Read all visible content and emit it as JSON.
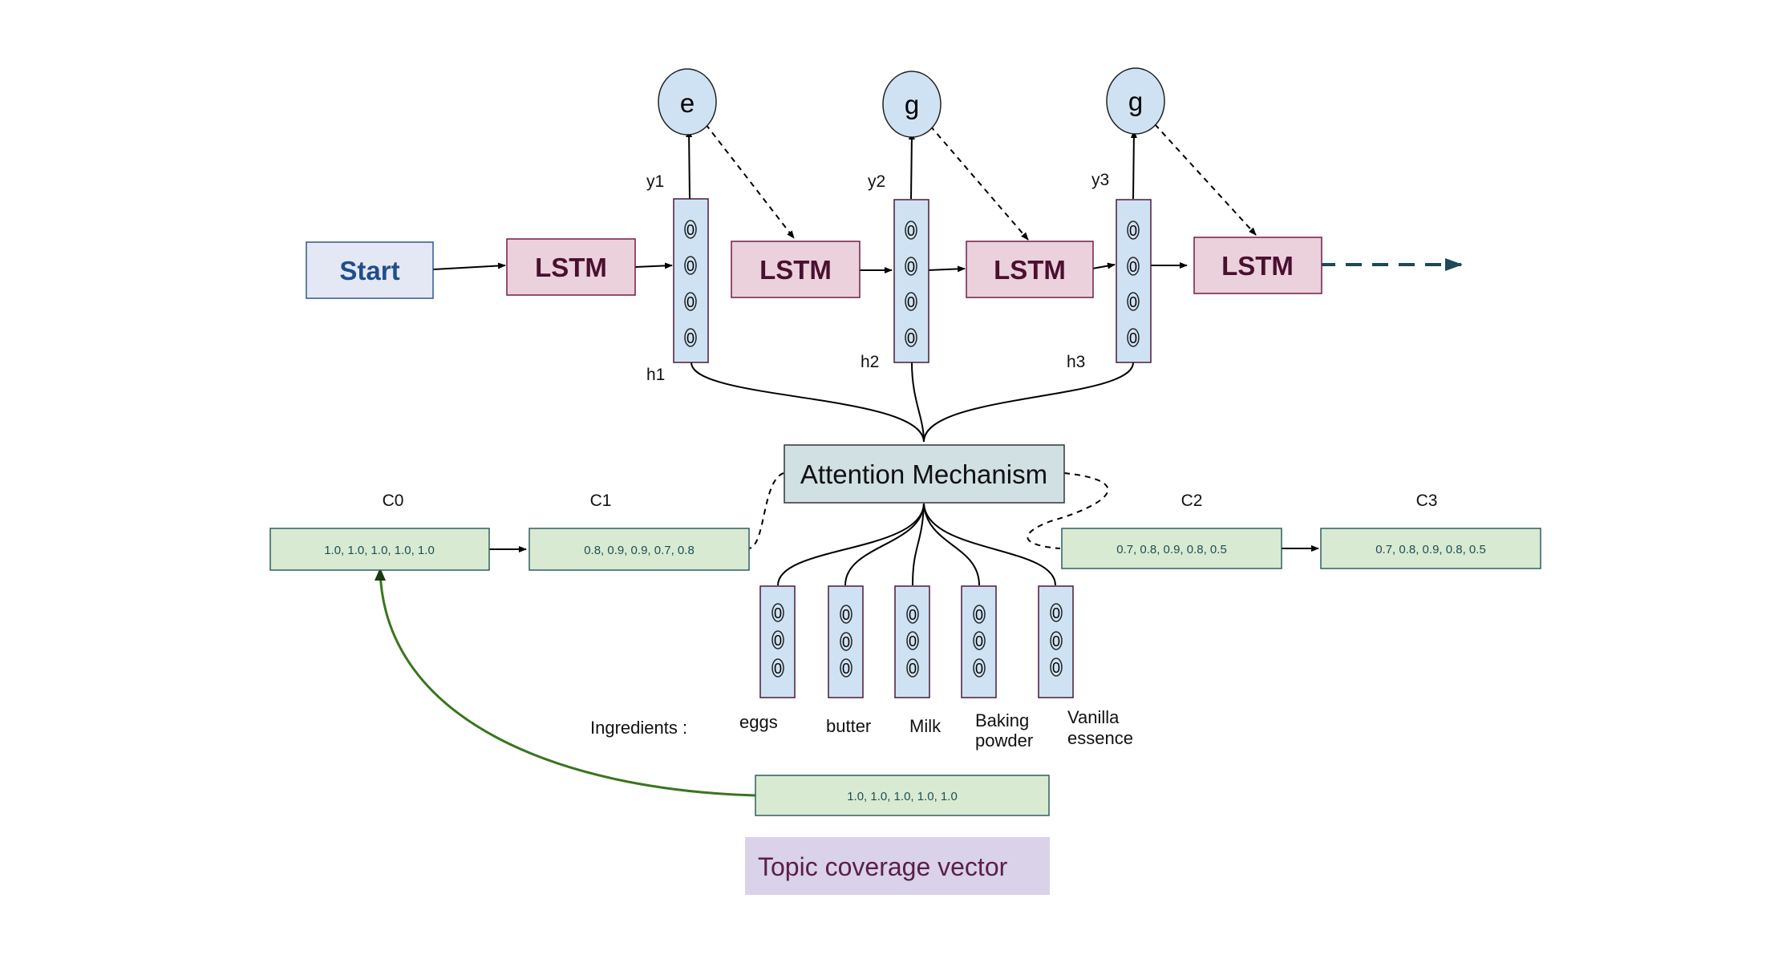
{
  "start_label": "Start",
  "lstm_label": "LSTM",
  "outputs": [
    {
      "token": "e",
      "y_label": "y1",
      "h_label": "h1"
    },
    {
      "token": "g",
      "y_label": "y2",
      "h_label": "h2"
    },
    {
      "token": "g",
      "y_label": "y3",
      "h_label": "h3"
    }
  ],
  "hidden_cell_glyph": "0",
  "attention_label": "Attention Mechanism",
  "coverage": [
    {
      "label": "C0",
      "values": "1.0, 1.0, 1.0, 1.0, 1.0"
    },
    {
      "label": "C1",
      "values": "0.8, 0.9, 0.9, 0.7, 0.8"
    },
    {
      "label": "C2",
      "values": "0.7, 0.8, 0.9, 0.8, 0.5"
    },
    {
      "label": "C3",
      "values": "0.7, 0.8, 0.9, 0.8, 0.5"
    }
  ],
  "ingredients_title": "Ingredients :",
  "ingredients": [
    {
      "line1": "eggs",
      "line2": ""
    },
    {
      "line1": "butter",
      "line2": ""
    },
    {
      "line1": "Milk",
      "line2": ""
    },
    {
      "line1": "Baking",
      "line2": "powder"
    },
    {
      "line1": "Vanilla",
      "line2": "essence"
    }
  ],
  "topic_vector_values": "1.0, 1.0, 1.0, 1.0, 1.0",
  "topic_label": "Topic coverage vector",
  "colors": {
    "lstm_fill": "#ead1dc",
    "lstm_stroke": "#741b47",
    "start_fill": "#e4e8f4",
    "start_stroke": "#2f5597",
    "cell_fill": "#cfe2f3",
    "cell_stroke": "#4a1a3a",
    "attention_fill": "#d0e0e3",
    "vector_fill": "#d9ead3",
    "vector_stroke": "#2f5f5f",
    "topic_fill": "#d9d2e9",
    "green_curve": "#38761d",
    "dashed_arrow": "#1b4a5a"
  }
}
